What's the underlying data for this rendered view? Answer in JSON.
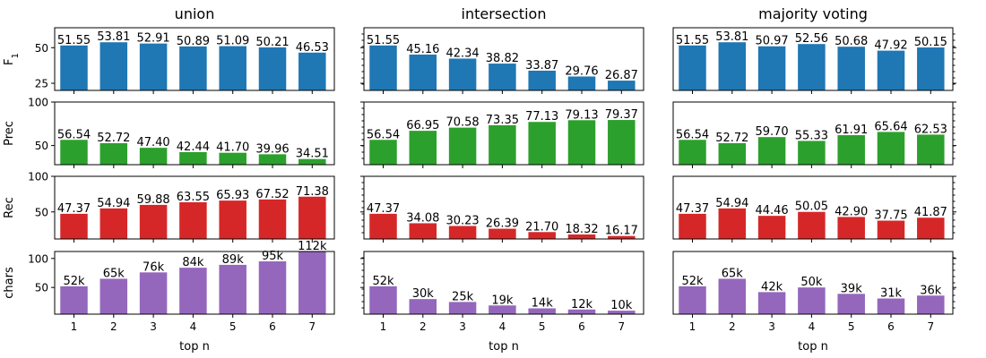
{
  "chart_data": {
    "type": "bar",
    "title": "",
    "xlabel": "top n",
    "categories": [
      "1",
      "2",
      "3",
      "4",
      "5",
      "6",
      "7"
    ],
    "columns": [
      "union",
      "intersection",
      "majority voting"
    ],
    "rows": [
      {
        "ylabel": "F1",
        "ylabel_main": "F",
        "ylabel_sub": "1",
        "color": "#1f77b4",
        "ylim": [
          20,
          64
        ],
        "yticks": [
          25,
          50
        ],
        "ytick_labels": [
          "25",
          "50"
        ],
        "series": [
          {
            "name": "union",
            "values": [
              51.55,
              53.81,
              52.91,
              50.89,
              51.09,
              50.21,
              46.53
            ],
            "labels": [
              "51.55",
              "53.81",
              "52.91",
              "50.89",
              "51.09",
              "50.21",
              "46.53"
            ]
          },
          {
            "name": "intersection",
            "values": [
              51.55,
              45.16,
              42.34,
              38.82,
              33.87,
              29.76,
              26.87
            ],
            "labels": [
              "51.55",
              "45.16",
              "42.34",
              "38.82",
              "33.87",
              "29.76",
              "26.87"
            ]
          },
          {
            "name": "majority voting",
            "values": [
              51.55,
              53.81,
              50.97,
              52.56,
              50.68,
              47.92,
              50.15
            ],
            "labels": [
              "51.55",
              "53.81",
              "50.97",
              "52.56",
              "50.68",
              "47.92",
              "50.15"
            ]
          }
        ]
      },
      {
        "ylabel": "Prec",
        "ylabel_main": "Prec",
        "ylabel_sub": "",
        "color": "#2ca02c",
        "ylim": [
          28,
          100
        ],
        "yticks": [
          50,
          100
        ],
        "ytick_labels": [
          "50",
          "100"
        ],
        "series": [
          {
            "name": "union",
            "values": [
              56.54,
              52.72,
              47.4,
              42.44,
              41.7,
              39.96,
              34.51
            ],
            "labels": [
              "56.54",
              "52.72",
              "47.40",
              "42.44",
              "41.70",
              "39.96",
              "34.51"
            ]
          },
          {
            "name": "intersection",
            "values": [
              56.54,
              66.95,
              70.58,
              73.35,
              77.13,
              79.13,
              79.37
            ],
            "labels": [
              "56.54",
              "66.95",
              "70.58",
              "73.35",
              "77.13",
              "79.13",
              "79.37"
            ]
          },
          {
            "name": "majority voting",
            "values": [
              56.54,
              52.72,
              59.7,
              55.33,
              61.91,
              65.64,
              62.53
            ],
            "labels": [
              "56.54",
              "52.72",
              "59.70",
              "55.33",
              "61.91",
              "65.64",
              "62.53"
            ]
          }
        ]
      },
      {
        "ylabel": "Rec",
        "ylabel_main": "Rec",
        "ylabel_sub": "",
        "color": "#d62728",
        "ylim": [
          12,
          100
        ],
        "yticks": [
          50,
          100
        ],
        "ytick_labels": [
          "50",
          "100"
        ],
        "series": [
          {
            "name": "union",
            "values": [
              47.37,
              54.94,
              59.88,
              63.55,
              65.93,
              67.52,
              71.38
            ],
            "labels": [
              "47.37",
              "54.94",
              "59.88",
              "63.55",
              "65.93",
              "67.52",
              "71.38"
            ]
          },
          {
            "name": "intersection",
            "values": [
              47.37,
              34.08,
              30.23,
              26.39,
              21.7,
              18.32,
              16.17
            ],
            "labels": [
              "47.37",
              "34.08",
              "30.23",
              "26.39",
              "21.70",
              "18.32",
              "16.17"
            ]
          },
          {
            "name": "majority voting",
            "values": [
              47.37,
              54.94,
              44.46,
              50.05,
              42.9,
              37.75,
              41.87
            ],
            "labels": [
              "47.37",
              "54.94",
              "44.46",
              "50.05",
              "42.90",
              "37.75",
              "41.87"
            ]
          }
        ]
      },
      {
        "ylabel": "chars",
        "ylabel_main": "chars",
        "ylabel_sub": "",
        "color": "#9467bd",
        "ylim": [
          4,
          112
        ],
        "yticks": [
          50,
          100
        ],
        "ytick_labels": [
          "50",
          "100"
        ],
        "series": [
          {
            "name": "union",
            "values": [
              52,
              65,
              76,
              84,
              89,
              95,
              112
            ],
            "labels": [
              "52k",
              "65k",
              "76k",
              "84k",
              "89k",
              "95k",
              "112k"
            ]
          },
          {
            "name": "intersection",
            "values": [
              52,
              30,
              25,
              19,
              14,
              12,
              10
            ],
            "labels": [
              "52k",
              "30k",
              "25k",
              "19k",
              "14k",
              "12k",
              "10k"
            ]
          },
          {
            "name": "majority voting",
            "values": [
              52,
              65,
              42,
              50,
              39,
              31,
              36
            ],
            "labels": [
              "52k",
              "65k",
              "42k",
              "50k",
              "39k",
              "31k",
              "36k"
            ]
          }
        ]
      }
    ]
  }
}
